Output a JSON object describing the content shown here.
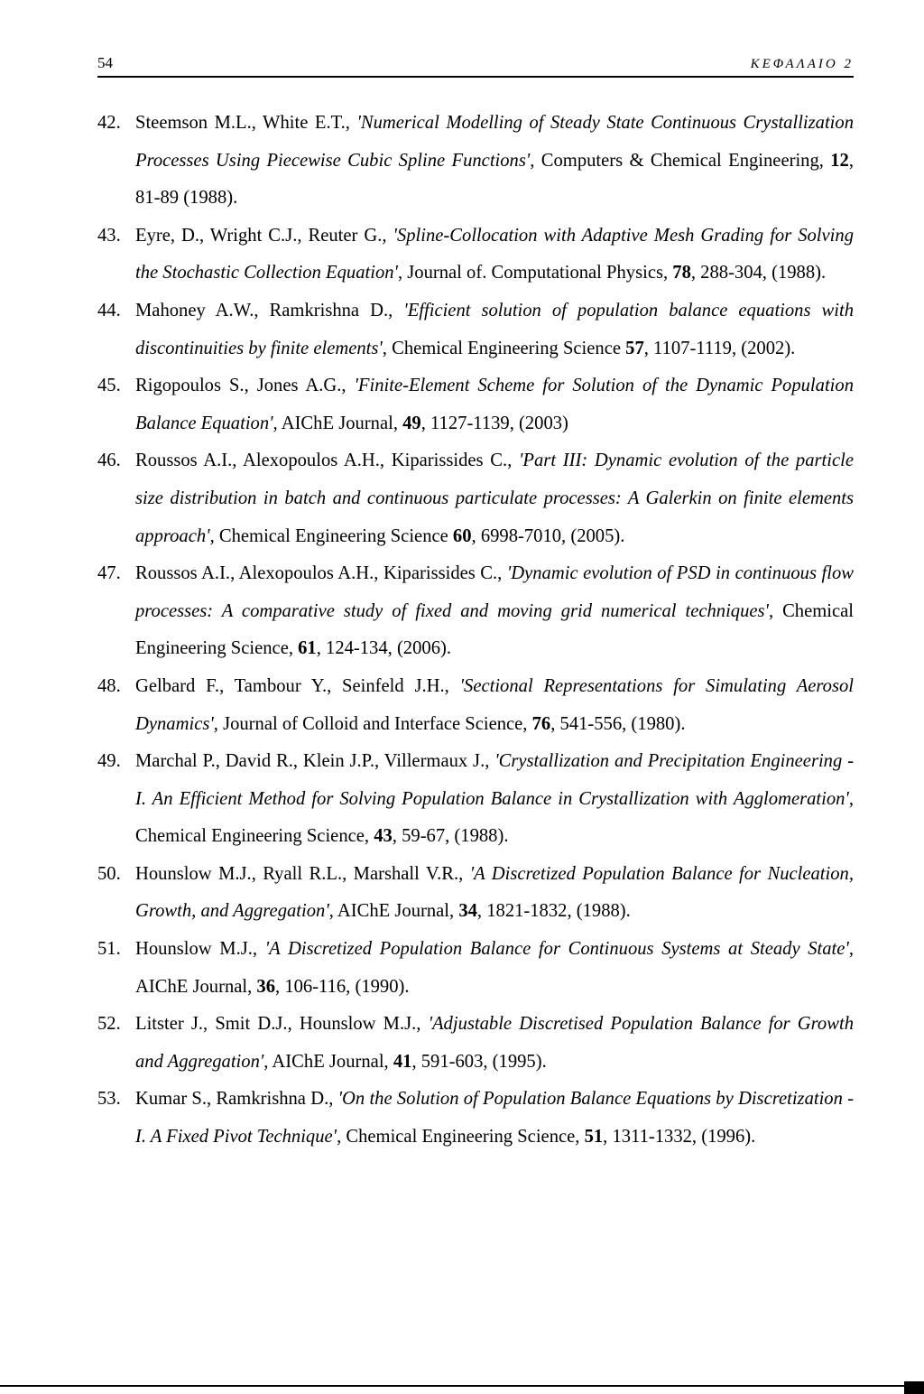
{
  "header": {
    "page_number": "54",
    "chapter_label": "ΚΕΦΑΛΑΙΟ 2"
  },
  "references": [
    {
      "num": "42.",
      "authors": "Steemson M.L., White E.T., ",
      "title": "'Numerical Modelling of Steady State Continuous Crystallization Processes Using Piecewise Cubic Spline Functions'",
      "tail1": ", Computers & Chemical Engineering, ",
      "vol": "12",
      "tail2": ", 81-89 (1988)."
    },
    {
      "num": "43.",
      "authors": "Eyre, D., Wright C.J., Reuter G., ",
      "title": "'Spline-Collocation with Adaptive Mesh Grading for Solving the Stochastic Collection Equation'",
      "tail1": ", Journal of. Computational Physics, ",
      "vol": "78",
      "tail2": ", 288-304, (1988)."
    },
    {
      "num": "44.",
      "authors": "Mahoney A.W., Ramkrishna D., ",
      "title": "'Efficient solution of population balance equations with discontinuities by finite elements'",
      "tail1": ", Chemical Engineering Science ",
      "vol": "57",
      "tail2": ", 1107-1119, (2002)."
    },
    {
      "num": "45.",
      "authors": "Rigopoulos S., Jones A.G., ",
      "title": "'Finite-Element Scheme for Solution of the Dynamic Population Balance Equation'",
      "tail1": ", AIChE Journal, ",
      "vol": "49",
      "tail2": ", 1127-1139, (2003)"
    },
    {
      "num": "46.",
      "authors": "Roussos A.I., Alexopoulos A.H., Kiparissides C., ",
      "title": "'Part III: Dynamic evolution of the particle size distribution in batch and continuous particulate processes: A Galerkin on finite elements approach'",
      "tail1": ", Chemical Engineering Science ",
      "vol": "60",
      "tail2": ", 6998-7010, (2005)."
    },
    {
      "num": "47.",
      "authors": "Roussos A.I., Alexopoulos A.H., Kiparissides C., ",
      "title": "'Dynamic evolution of PSD in continuous flow processes: A comparative study of fixed and moving grid numerical techniques'",
      "tail1": ", Chemical Engineering Science, ",
      "vol": "61",
      "tail2": ", 124-134, (2006)."
    },
    {
      "num": "48.",
      "authors": "Gelbard F., Tambour Y., Seinfeld J.H., ",
      "title": "'Sectional Representations for Simulating Aerosol Dynamics'",
      "tail1": ", Journal of Colloid and Interface Science, ",
      "vol": "76",
      "tail2": ", 541-556, (1980)."
    },
    {
      "num": "49.",
      "authors": "Marchal P., David R., Klein J.P., Villermaux J., ",
      "title": "'Crystallization and Precipitation Engineering - I. An Efficient Method for Solving Population Balance in Crystallization with Agglomeration'",
      "tail1": ", Chemical Engineering Science, ",
      "vol": "43",
      "tail2": ", 59-67, (1988)."
    },
    {
      "num": "50.",
      "authors": "Hounslow M.J., Ryall R.L., Marshall V.R., ",
      "title": "'A Discretized Population Balance for Nucleation, Growth, and Aggregation'",
      "tail1": ", AIChE Journal, ",
      "vol": "34",
      "tail2": ", 1821-1832, (1988)."
    },
    {
      "num": "51.",
      "authors": "Hounslow M.J., ",
      "title": "'A Discretized Population Balance for Continuous Systems at Steady State'",
      "tail1": ", AIChE Journal, ",
      "vol": "36",
      "tail2": ", 106-116, (1990)."
    },
    {
      "num": "52.",
      "authors": "Litster J., Smit D.J., Hounslow M.J., ",
      "title": "'Adjustable Discretised Population Balance for Growth and Aggregation'",
      "tail1": ", AIChE Journal, ",
      "vol": "41",
      "tail2": ", 591-603, (1995)."
    },
    {
      "num": "53.",
      "authors": "Kumar S., Ramkrishna D., ",
      "title": "'On the Solution of Population Balance Equations by Discretization - I. A Fixed Pivot Technique'",
      "tail1": ", Chemical Engineering Science, ",
      "vol": "51",
      "tail2": ", 1311-1332, (1996)."
    }
  ]
}
